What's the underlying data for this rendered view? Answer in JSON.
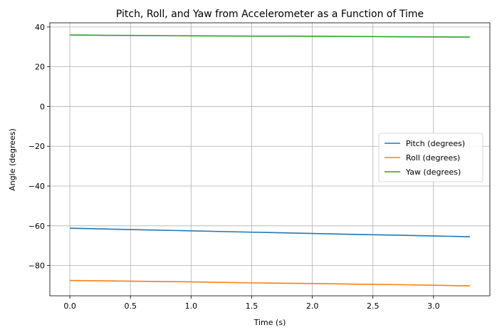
{
  "chart_data": {
    "type": "line",
    "title": "Pitch, Roll, and Yaw from Accelerometer as a Function of Time",
    "xlabel": "Time (s)",
    "ylabel": "Angle (degrees)",
    "xlim": [
      -0.165,
      3.465
    ],
    "ylim": [
      -95.2,
      42.1
    ],
    "xticks": [
      0.0,
      0.5,
      1.0,
      1.5,
      2.0,
      2.5,
      3.0
    ],
    "xtick_labels": [
      "0.0",
      "0.5",
      "1.0",
      "1.5",
      "2.0",
      "2.5",
      "3.0"
    ],
    "yticks": [
      -80,
      -60,
      -40,
      -20,
      0,
      20,
      40
    ],
    "ytick_labels": [
      "−80",
      "−60",
      "−40",
      "−20",
      "0",
      "20",
      "40"
    ],
    "grid": true,
    "legend_position": "center-right",
    "x": [
      0.0,
      0.3,
      0.6,
      0.9,
      1.2,
      1.5,
      1.8,
      2.1,
      2.4,
      2.7,
      3.0,
      3.3
    ],
    "series": [
      {
        "name": "Pitch (degrees)",
        "color": "#1f77b4",
        "values": [
          -61.2,
          -61.6,
          -62.0,
          -62.4,
          -62.8,
          -63.2,
          -63.6,
          -64.0,
          -64.4,
          -64.7,
          -65.1,
          -65.5
        ]
      },
      {
        "name": "Roll (degrees)",
        "color": "#ff7f0e",
        "values": [
          -87.5,
          -87.7,
          -87.9,
          -88.1,
          -88.4,
          -88.7,
          -88.9,
          -89.1,
          -89.4,
          -89.6,
          -89.9,
          -90.2
        ]
      },
      {
        "name": "Yaw (degrees)",
        "color": "#2ca02c",
        "values": [
          36.0,
          35.8,
          35.7,
          35.6,
          35.5,
          35.4,
          35.4,
          35.3,
          35.2,
          35.1,
          35.0,
          34.9
        ]
      }
    ]
  }
}
